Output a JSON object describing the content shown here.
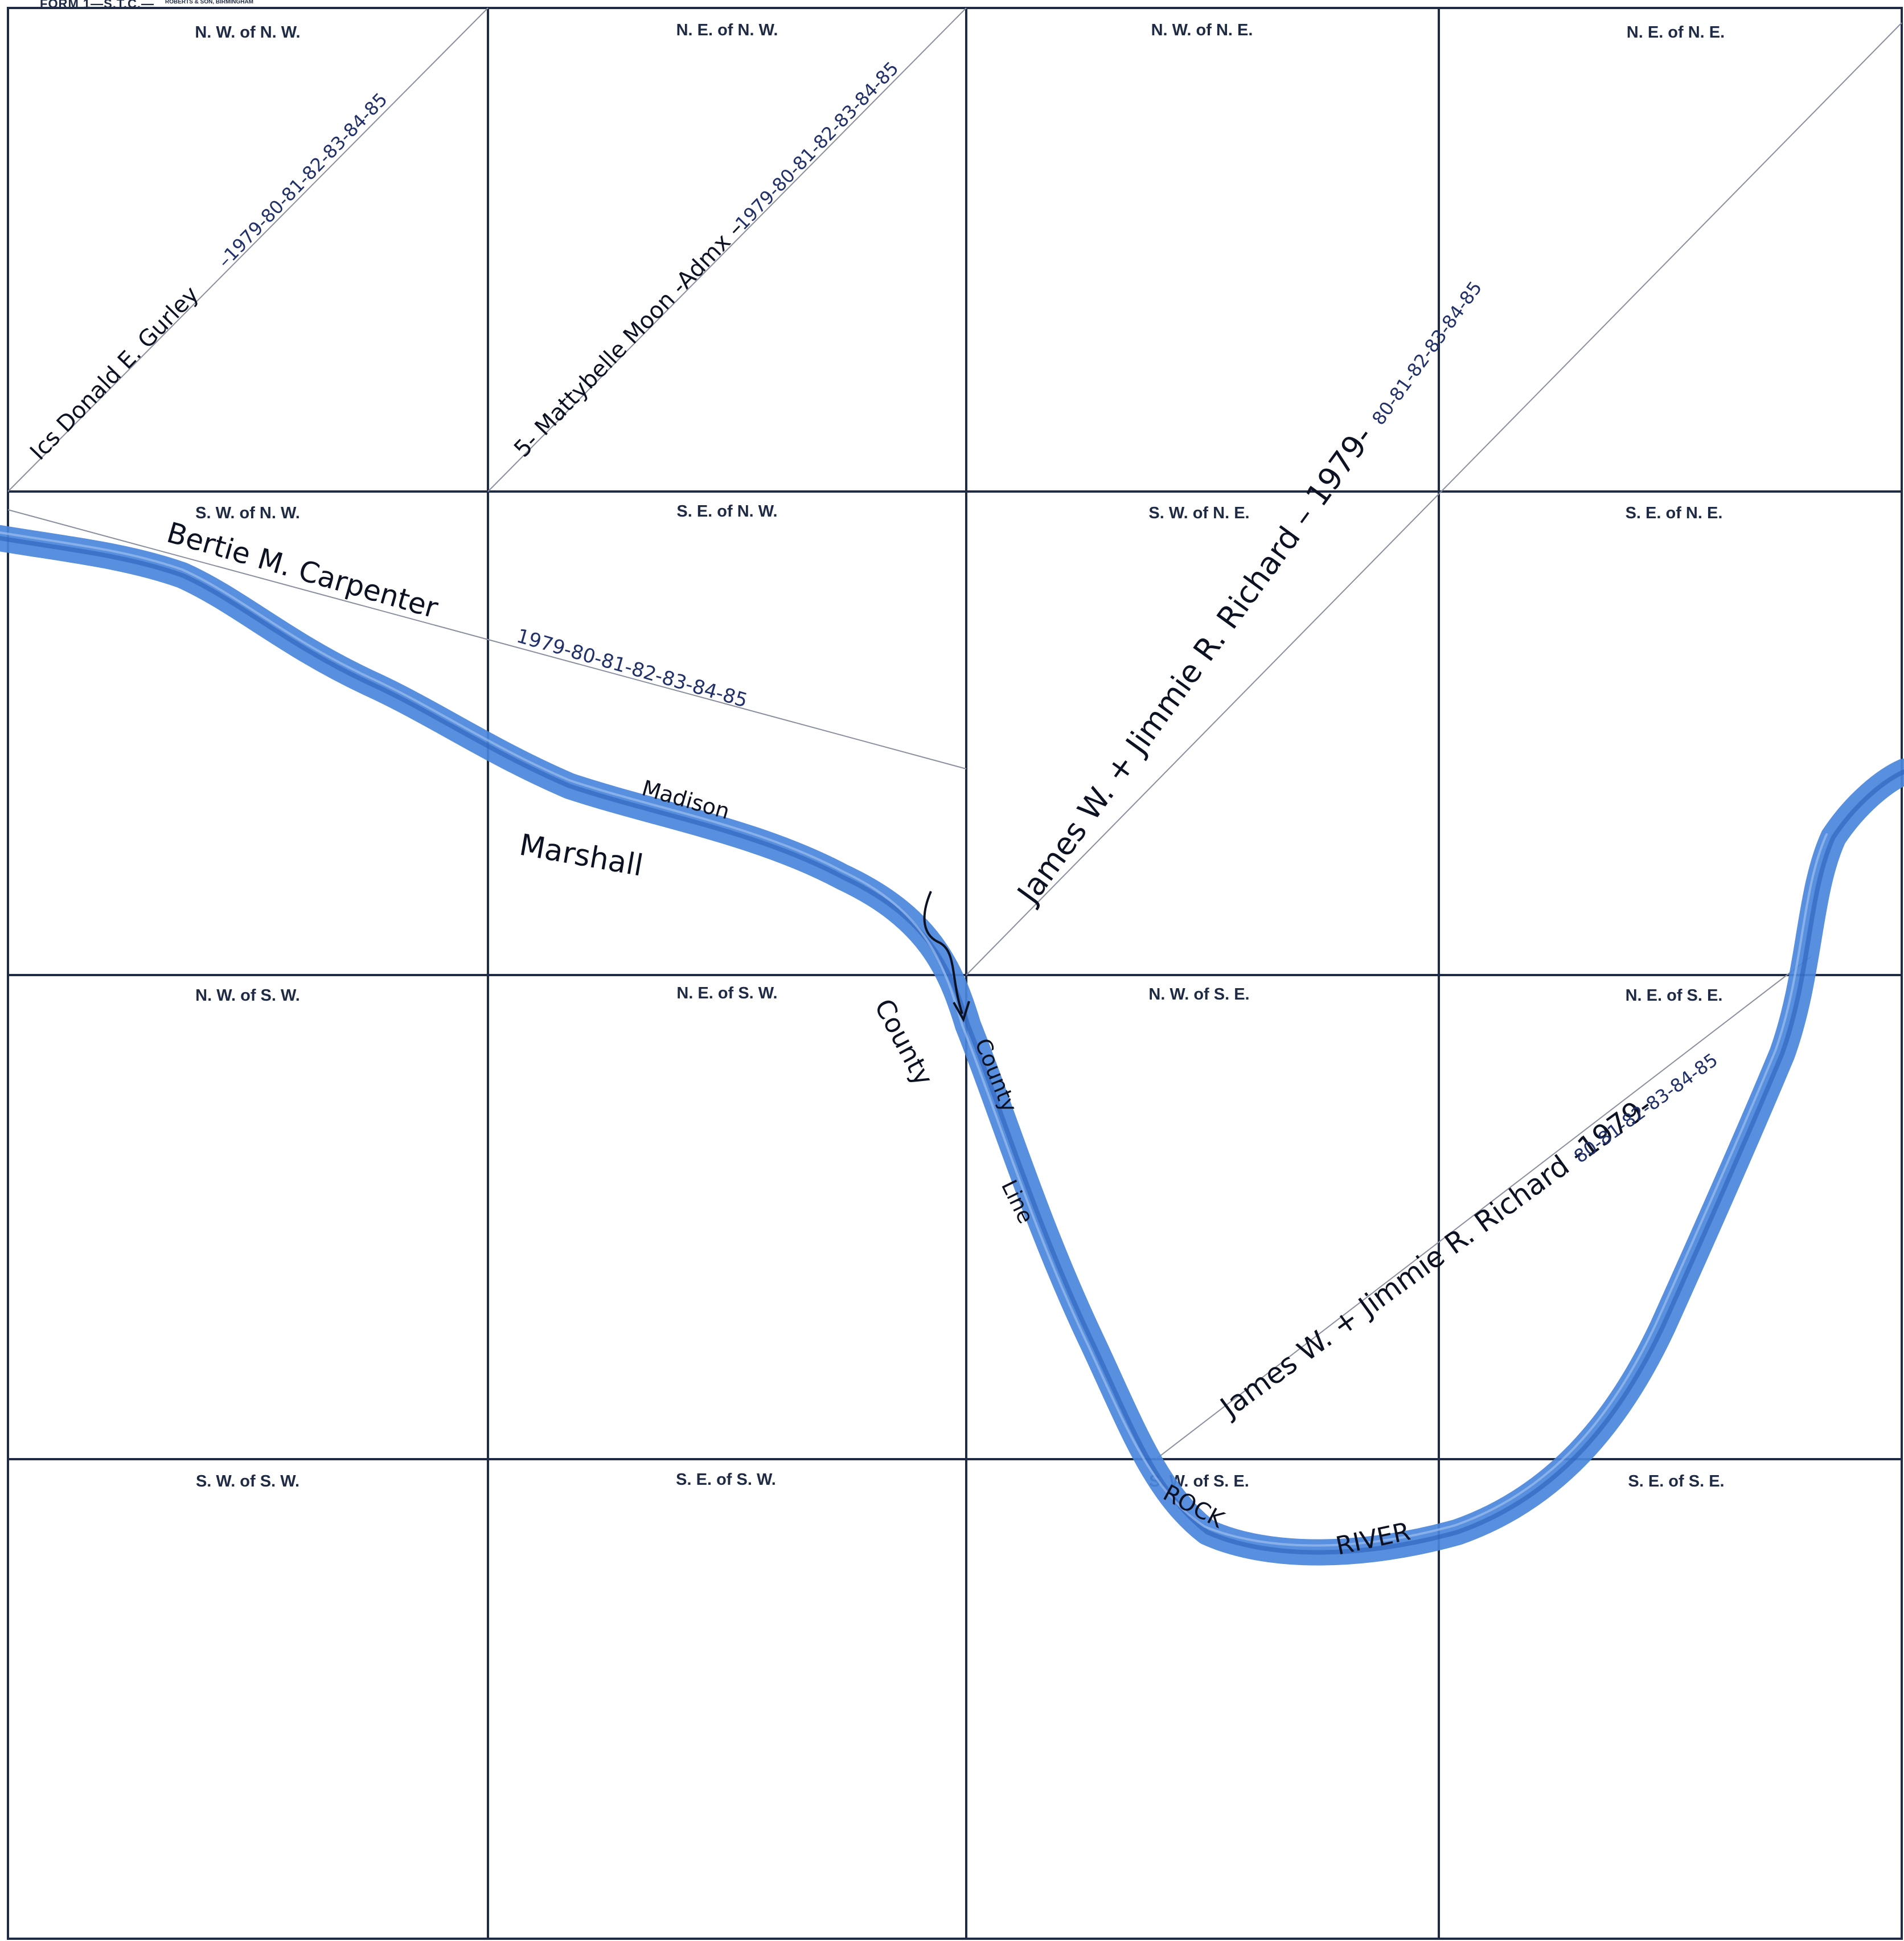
{
  "form": {
    "title": "FORM 1—S.T.C.—",
    "publisher": "ROBERTS & SON, BIRMINGHAM"
  },
  "quarters": [
    "N. W. of N. W.",
    "N. E. of N. W.",
    "N. W. of N. E.",
    "N. E. of N. E.",
    "S. W. of N. W.",
    "S. E. of N. W.",
    "S. W. of N. E.",
    "S. E. of N. E.",
    "N. W. of S. W.",
    "N. E. of S. W.",
    "N. W. of S. E.",
    "N. E. of S. E.",
    "S. W. of S. W.",
    "S. E. of S. W.",
    "S. W. of S. E.",
    "S. E. of S. E."
  ],
  "owners": {
    "gurley": {
      "name": "Ics Donald E. Gurley",
      "years": "–1979-80-81-82-83-84-85"
    },
    "moon": {
      "name": "5- Mattybelle Moon -Admx –",
      "years": "1979-80-81-82-83-84-85"
    },
    "carpenter": {
      "name": "Bertie M. Carpenter",
      "years": "1979-80-81-82-83-84-85"
    },
    "richard_ne": {
      "name": "James W. + Jimmie R. Richard – 1979-",
      "years": "80-81-82-83-84-85"
    },
    "richard_se": {
      "name": "James W. + Jimmie R. Richard -1979-",
      "years": "80-81-82-83-84-85"
    }
  },
  "place_labels": {
    "madison": "Madison",
    "marshall": "Marshall",
    "county_left": "County",
    "county_right": "County",
    "line": "Line",
    "river_rock": "ROCK",
    "river_river": "RIVER"
  },
  "colors": {
    "grid": "#1f2a44",
    "river": "#4a86dc",
    "river_dark": "#2a5db8",
    "ink": "#0d1222"
  }
}
